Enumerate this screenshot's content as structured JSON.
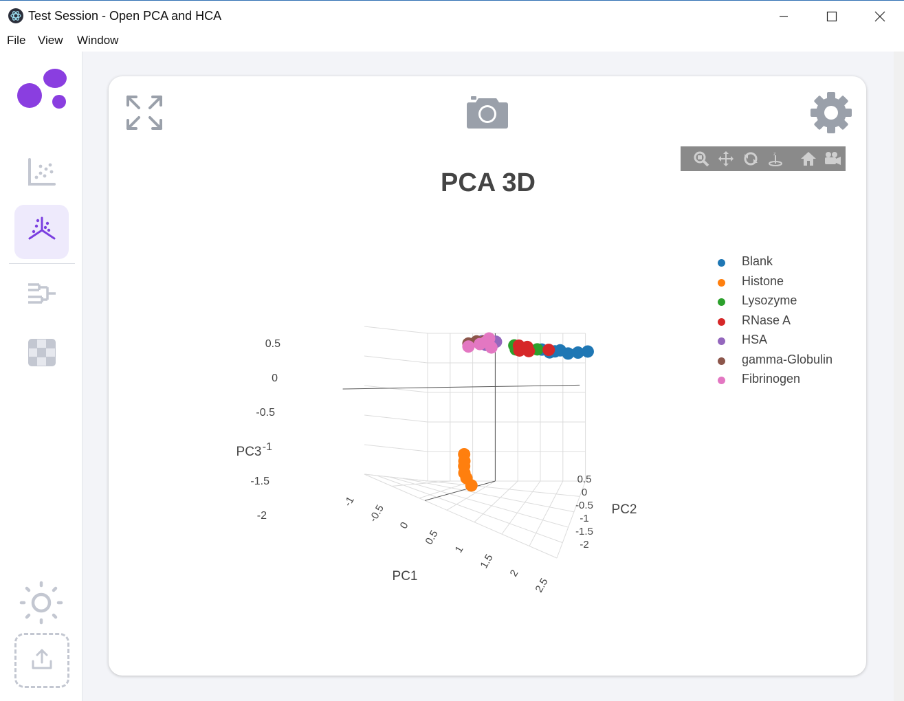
{
  "window": {
    "title": "Test Session - Open PCA and HCA",
    "minimize_icon": "minimize-icon",
    "maximize_icon": "maximize-icon",
    "close_icon": "close-icon"
  },
  "menu": {
    "file": "File",
    "view": "View",
    "window": "Window"
  },
  "sidebar": {
    "logo_icon": "blob-logo-icon",
    "items": [
      {
        "name": "scatter-2d",
        "icon": "scatter-plot-icon",
        "active": false
      },
      {
        "name": "scatter-3d",
        "icon": "scatter-3d-icon",
        "active": true
      },
      {
        "name": "dendrogram",
        "icon": "dendrogram-icon",
        "active": false
      },
      {
        "name": "heatmap",
        "icon": "heatmap-icon",
        "active": false
      }
    ],
    "theme_icon": "sun-icon",
    "upload_icon": "upload-icon",
    "accent": "#7b3fe0"
  },
  "card": {
    "expand_icon": "expand-icon",
    "camera_icon": "camera-icon",
    "settings_icon": "gear-icon"
  },
  "modebar": {
    "icons": [
      "zoom-icon",
      "pan-icon",
      "orbit-rotation-icon",
      "turntable-rotation-icon",
      "reset-camera-icon",
      "camera-view-icon"
    ]
  },
  "chart_data": {
    "type": "scatter",
    "title": "PCA 3D",
    "xlabel": "PC1",
    "ylabel": "PC2",
    "zlabel": "PC3",
    "x_ticks": [
      "-1",
      "-0.5",
      "0",
      "0.5",
      "1",
      "1.5",
      "2",
      "2.5"
    ],
    "y_ticks": [
      "0.5",
      "0",
      "-0.5",
      "-1",
      "-1.5",
      "-2"
    ],
    "z_ticks": [
      "0.5",
      "0",
      "-0.5",
      "-1",
      "-1.5",
      "-2"
    ],
    "xlim": [
      -1,
      2.5
    ],
    "ylim": [
      -2,
      0.5
    ],
    "zlim": [
      -2,
      0.5
    ],
    "legend_position": "right",
    "series": [
      {
        "name": "Blank",
        "color": "#1f77b4",
        "points": [
          {
            "x": 1.6,
            "y": 0.3,
            "z": 0.3
          },
          {
            "x": 1.8,
            "y": 0.2,
            "z": 0.3
          },
          {
            "x": 1.9,
            "y": 0.25,
            "z": 0.3
          },
          {
            "x": 2.0,
            "y": 0.3,
            "z": 0.3
          },
          {
            "x": 2.2,
            "y": 0.2,
            "z": 0.3
          },
          {
            "x": 2.4,
            "y": 0.25,
            "z": 0.3
          },
          {
            "x": 2.6,
            "y": 0.3,
            "z": 0.3
          }
        ]
      },
      {
        "name": "Histone",
        "color": "#ff7f0e",
        "points": [
          {
            "x": 0.0,
            "y": 0.1,
            "z": -1.5
          },
          {
            "x": 0.05,
            "y": 0.0,
            "z": -1.6
          },
          {
            "x": 0.0,
            "y": 0.1,
            "z": -1.7
          },
          {
            "x": 0.05,
            "y": 0.0,
            "z": -1.8
          },
          {
            "x": 0.05,
            "y": 0.1,
            "z": -1.9
          },
          {
            "x": 0.2,
            "y": 0.0,
            "z": -2.0
          }
        ]
      },
      {
        "name": "Lysozyme",
        "color": "#2ca02c",
        "points": [
          {
            "x": 1.0,
            "y": 0.3,
            "z": 0.35
          },
          {
            "x": 1.05,
            "y": 0.25,
            "z": 0.3
          },
          {
            "x": 1.1,
            "y": 0.3,
            "z": 0.3
          },
          {
            "x": 1.15,
            "y": 0.2,
            "z": 0.35
          },
          {
            "x": 1.2,
            "y": 0.3,
            "z": 0.3
          },
          {
            "x": 1.5,
            "y": 0.3,
            "z": 0.3
          }
        ]
      },
      {
        "name": "RNase A",
        "color": "#d62728",
        "points": [
          {
            "x": 1.1,
            "y": 0.3,
            "z": 0.35
          },
          {
            "x": 1.15,
            "y": 0.2,
            "z": 0.3
          },
          {
            "x": 1.25,
            "y": 0.3,
            "z": 0.3
          },
          {
            "x": 1.3,
            "y": 0.25,
            "z": 0.35
          },
          {
            "x": 1.35,
            "y": 0.2,
            "z": 0.3
          },
          {
            "x": 1.75,
            "y": 0.3,
            "z": 0.3
          }
        ]
      },
      {
        "name": "HSA",
        "color": "#9467bd",
        "points": [
          {
            "x": 0.3,
            "y": 0.3,
            "z": 0.4
          },
          {
            "x": 0.4,
            "y": 0.25,
            "z": 0.35
          },
          {
            "x": 0.5,
            "y": 0.3,
            "z": 0.4
          },
          {
            "x": 0.6,
            "y": 0.3,
            "z": 0.4
          }
        ]
      },
      {
        "name": "gamma-Globulin",
        "color": "#8c564b",
        "points": [
          {
            "x": 0.0,
            "y": 0.3,
            "z": 0.35
          },
          {
            "x": 0.2,
            "y": 0.25,
            "z": 0.4
          },
          {
            "x": 0.35,
            "y": 0.3,
            "z": 0.4
          }
        ]
      },
      {
        "name": "Fibrinogen",
        "color": "#e377c2",
        "points": [
          {
            "x": 0.0,
            "y": 0.3,
            "z": 0.3
          },
          {
            "x": 0.25,
            "y": 0.3,
            "z": 0.35
          },
          {
            "x": 0.4,
            "y": 0.25,
            "z": 0.4
          },
          {
            "x": 0.45,
            "y": 0.3,
            "z": 0.45
          },
          {
            "x": 0.5,
            "y": 0.3,
            "z": 0.3
          }
        ]
      }
    ]
  }
}
